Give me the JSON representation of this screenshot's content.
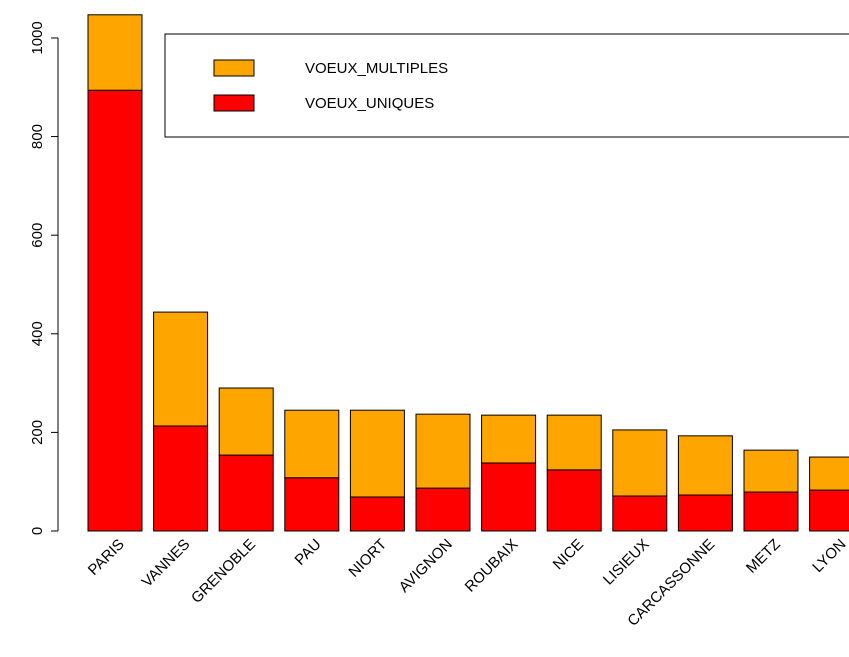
{
  "chart_data": {
    "type": "stacked_bar",
    "categories": [
      "PARIS",
      "VANNES",
      "GRENOBLE",
      "PAU",
      "NIORT",
      "AVIGNON",
      "ROUBAIX",
      "NICE",
      "LISIEUX",
      "CARCASSONNE",
      "METZ",
      "LYON"
    ],
    "series": [
      {
        "name": "VOEUX_UNIQUES",
        "color": "#ff0000",
        "values": [
          894,
          213,
          154,
          108,
          69,
          87,
          138,
          124,
          71,
          73,
          79,
          83
        ]
      },
      {
        "name": "VOEUX_MULTIPLES",
        "color": "#ffa500",
        "values": [
          153,
          231,
          136,
          137,
          176,
          150,
          97,
          111,
          134,
          120,
          85,
          67
        ]
      }
    ],
    "ylim": [
      0,
      1077
    ],
    "yticks": [
      0,
      200,
      400,
      600,
      800,
      1000
    ]
  }
}
